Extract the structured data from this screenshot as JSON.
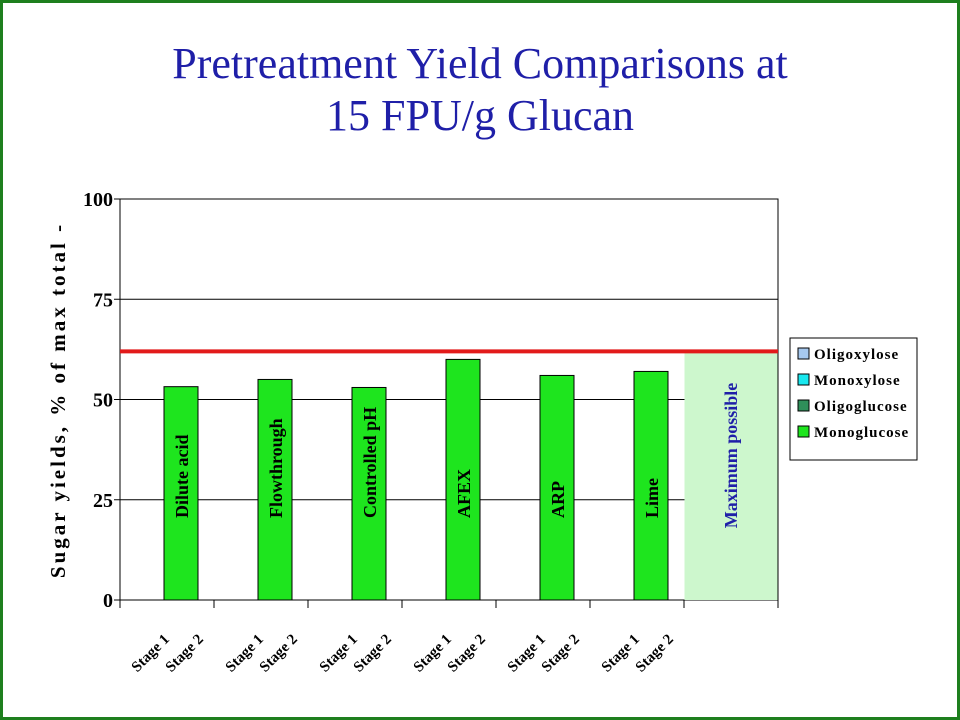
{
  "title": {
    "line1": "Pretreatment Yield Comparisons at",
    "line2": "15 FPU/g Glucan"
  },
  "chart_data": {
    "type": "bar",
    "ylabel": "Sugar yields, % of max total -",
    "ylim": [
      0,
      100
    ],
    "yticks": [
      "0",
      "25",
      "50",
      "75",
      "100"
    ],
    "grid": true,
    "legend_position": "right",
    "groups": [
      "Dilute acid",
      "Flowthrough",
      "Controlled pH",
      "AFEX",
      "ARP",
      "Lime",
      "Maximum possible"
    ],
    "stage_labels": [
      "Stage 1",
      "Stage 2"
    ],
    "series": [
      {
        "name": "Oligoxylose",
        "color": "#a6c8ee",
        "values": [
          0,
          0,
          0,
          0,
          0,
          0,
          0
        ]
      },
      {
        "name": "Monoxylose",
        "color": "#19e8ef",
        "values": [
          0,
          0,
          0,
          0,
          0,
          0,
          0
        ]
      },
      {
        "name": "Oligoglucose",
        "color": "#2f8f5a",
        "values": [
          0,
          0,
          0,
          0,
          0,
          0,
          0
        ]
      },
      {
        "name": "Monoglucose",
        "color": "#1ee51e",
        "values": [
          53.2,
          55,
          53,
          60,
          56,
          57,
          62
        ]
      }
    ],
    "maximum_line": 62,
    "colors": {
      "bar": "#1ee51e",
      "max_bar": "#cdf7cd",
      "max_line": "#e21a1a",
      "max_label": "#1f1fa8",
      "text": "#000000"
    }
  }
}
